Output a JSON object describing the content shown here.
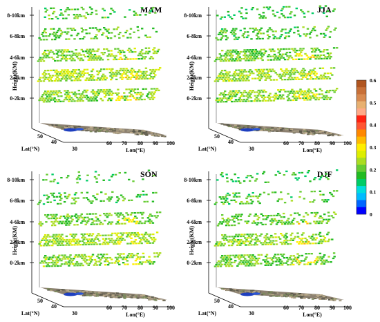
{
  "chart_data": [
    {
      "type": "heatmap",
      "title": "MAM",
      "ylabel": "Height(KM)",
      "xlabel": "Lon(°E)",
      "zlabel": "Lat(°N)",
      "height_levels": [
        "0-2km",
        "2-4km",
        "4-6km",
        "6-8km",
        "8-10km"
      ],
      "lon_ticks": [
        "30",
        "60",
        "70",
        "80",
        "90",
        "100"
      ],
      "lat_ticks": [
        "50",
        "40"
      ],
      "level_density": [
        0.8,
        0.85,
        0.7,
        0.5,
        0.35
      ],
      "level_mean_value": [
        0.22,
        0.24,
        0.22,
        0.2,
        0.19
      ]
    },
    {
      "type": "heatmap",
      "title": "JJA",
      "ylabel": "Height(KM)",
      "xlabel": "Lon(°E)",
      "zlabel": "Lat(°N)",
      "height_levels": [
        "0-2km",
        "2-4km",
        "4-6km",
        "6-8km",
        "8-10km"
      ],
      "lon_ticks": [
        "30",
        "60",
        "70",
        "80",
        "90",
        "100"
      ],
      "lat_ticks": [
        "50",
        "40"
      ],
      "level_density": [
        0.75,
        0.85,
        0.8,
        0.55,
        0.3
      ],
      "level_mean_value": [
        0.22,
        0.23,
        0.21,
        0.19,
        0.17
      ]
    },
    {
      "type": "heatmap",
      "title": "SON",
      "ylabel": "Height(KM)",
      "xlabel": "Lon(°E)",
      "zlabel": "Lat(°N)",
      "height_levels": [
        "0-2km",
        "2-4km",
        "4-6km",
        "6-8km",
        "8-10km"
      ],
      "lon_ticks": [
        "30",
        "60",
        "70",
        "80",
        "90",
        "100"
      ],
      "lat_ticks": [
        "50",
        "40"
      ],
      "level_density": [
        0.75,
        0.8,
        0.6,
        0.4,
        0.25
      ],
      "level_mean_value": [
        0.22,
        0.23,
        0.21,
        0.19,
        0.18
      ]
    },
    {
      "type": "heatmap",
      "title": "DJF",
      "ylabel": "Height(KM)",
      "xlabel": "Lon(°E)",
      "zlabel": "Lat(°N)",
      "height_levels": [
        "0-2km",
        "2-4km",
        "4-6km",
        "6-8km",
        "8-10km"
      ],
      "lon_ticks": [
        "30",
        "60",
        "70",
        "80",
        "90",
        "100"
      ],
      "lat_ticks": [
        "50",
        "40"
      ],
      "level_density": [
        0.75,
        0.7,
        0.55,
        0.4,
        0.25
      ],
      "level_mean_value": [
        0.21,
        0.22,
        0.2,
        0.19,
        0.17
      ]
    }
  ],
  "colorbar": {
    "ticks": [
      "0.6",
      "0.5",
      "0.4",
      "0.3",
      "0.2",
      "0.1",
      "0"
    ],
    "range": [
      0,
      0.6
    ],
    "colors": [
      "#0000ff",
      "#0066ff",
      "#00bbff",
      "#00dddd",
      "#00cc66",
      "#22bb22",
      "#66cc33",
      "#aadd22",
      "#ddee00",
      "#ffee00",
      "#ffbb00",
      "#ff8800",
      "#ff5533",
      "#ff2211",
      "#ffaa88",
      "#e8b070",
      "#d88a50",
      "#c87038",
      "#b05520"
    ]
  }
}
